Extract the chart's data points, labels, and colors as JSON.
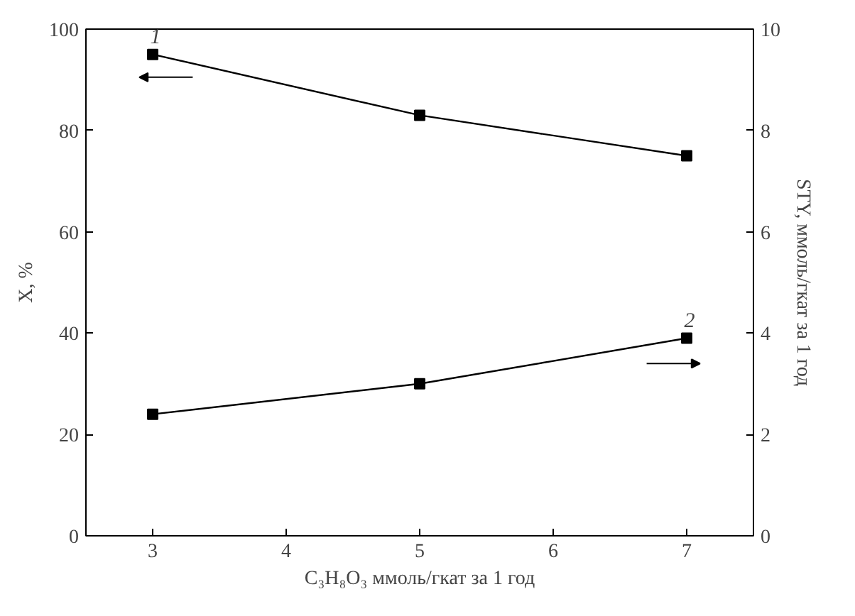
{
  "chart_data": {
    "type": "line",
    "xlabel": "C₃H₈O₃ ммоль/гкат за 1 год",
    "ylabel": "X, %",
    "y2label": "STY, ммоль/гкат за 1 год",
    "x": [
      3,
      5,
      7
    ],
    "series": [
      {
        "color": "#000000",
        "values": [
          95,
          83,
          75
        ]
      },
      {
        "color": "#000000",
        "values": [
          2.4,
          3.0,
          3.9
        ],
        "axis": "y2"
      }
    ],
    "xlim": [
      2.5,
      7.5
    ],
    "xticks": [
      3,
      4,
      5,
      6,
      7
    ],
    "ylim": [
      0,
      100
    ],
    "yticks": [
      0,
      20,
      40,
      60,
      80,
      100
    ],
    "y2lim": [
      0,
      10
    ],
    "y2ticks": [
      0,
      2,
      4,
      6,
      8,
      10
    ],
    "annotations": [
      {
        "text": "1",
        "x": 3,
        "y": 95
      },
      {
        "text": "2",
        "x": 7,
        "y": 39
      }
    ],
    "marker": "square",
    "line_style": "solid",
    "grid": false
  }
}
